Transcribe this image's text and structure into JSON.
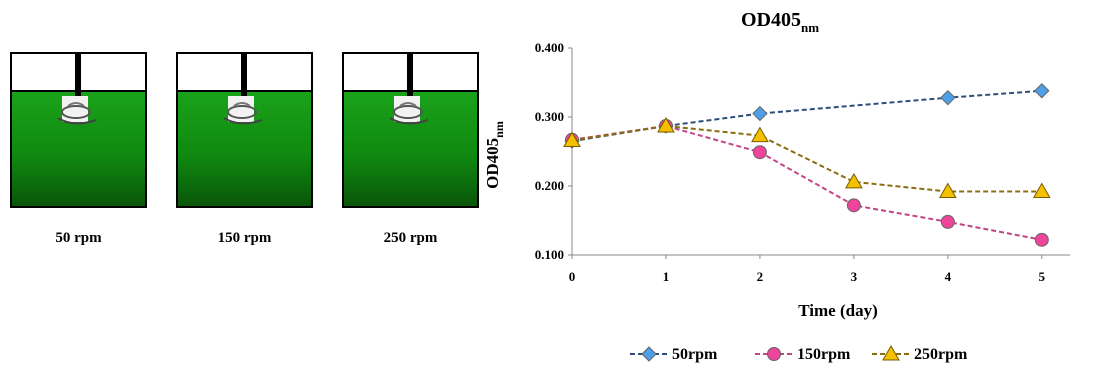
{
  "diagram": {
    "tanks": [
      {
        "label": "50 rpm"
      },
      {
        "label": "150 rpm"
      },
      {
        "label": "250 rpm"
      }
    ],
    "colors": {
      "liquid_top": "#1aa21a",
      "liquid_bottom": "#0a560a"
    }
  },
  "chart_data": {
    "type": "line",
    "title_main": "OD405",
    "title_sub": "nm",
    "ylabel_main": "OD405",
    "ylabel_sub": "nm",
    "xlabel": "Time (day)",
    "x": [
      0,
      1,
      2,
      3,
      4,
      5
    ],
    "xlim": [
      0,
      5.3
    ],
    "ylim": [
      0.1,
      0.4
    ],
    "yticks": [
      "0.100",
      "0.200",
      "0.300",
      "0.400"
    ],
    "xticks": [
      "0",
      "1",
      "2",
      "3",
      "4",
      "5"
    ],
    "grid": false,
    "legend": "bottom",
    "series": [
      {
        "name": "50rpm",
        "values": [
          0.265,
          0.287,
          0.305,
          null,
          0.328,
          0.338
        ],
        "color": "#2e4d7a",
        "marker": "diamond",
        "fill": "#4e9fe8"
      },
      {
        "name": "150rpm",
        "values": [
          0.267,
          0.287,
          0.249,
          0.172,
          0.148,
          0.122
        ],
        "color": "#c14585",
        "marker": "circle",
        "fill": "#ee4499"
      },
      {
        "name": "250rpm",
        "values": [
          0.266,
          0.287,
          0.273,
          0.206,
          0.192,
          0.192
        ],
        "color": "#8a6d10",
        "marker": "triangle",
        "fill": "#f5c000"
      }
    ]
  }
}
